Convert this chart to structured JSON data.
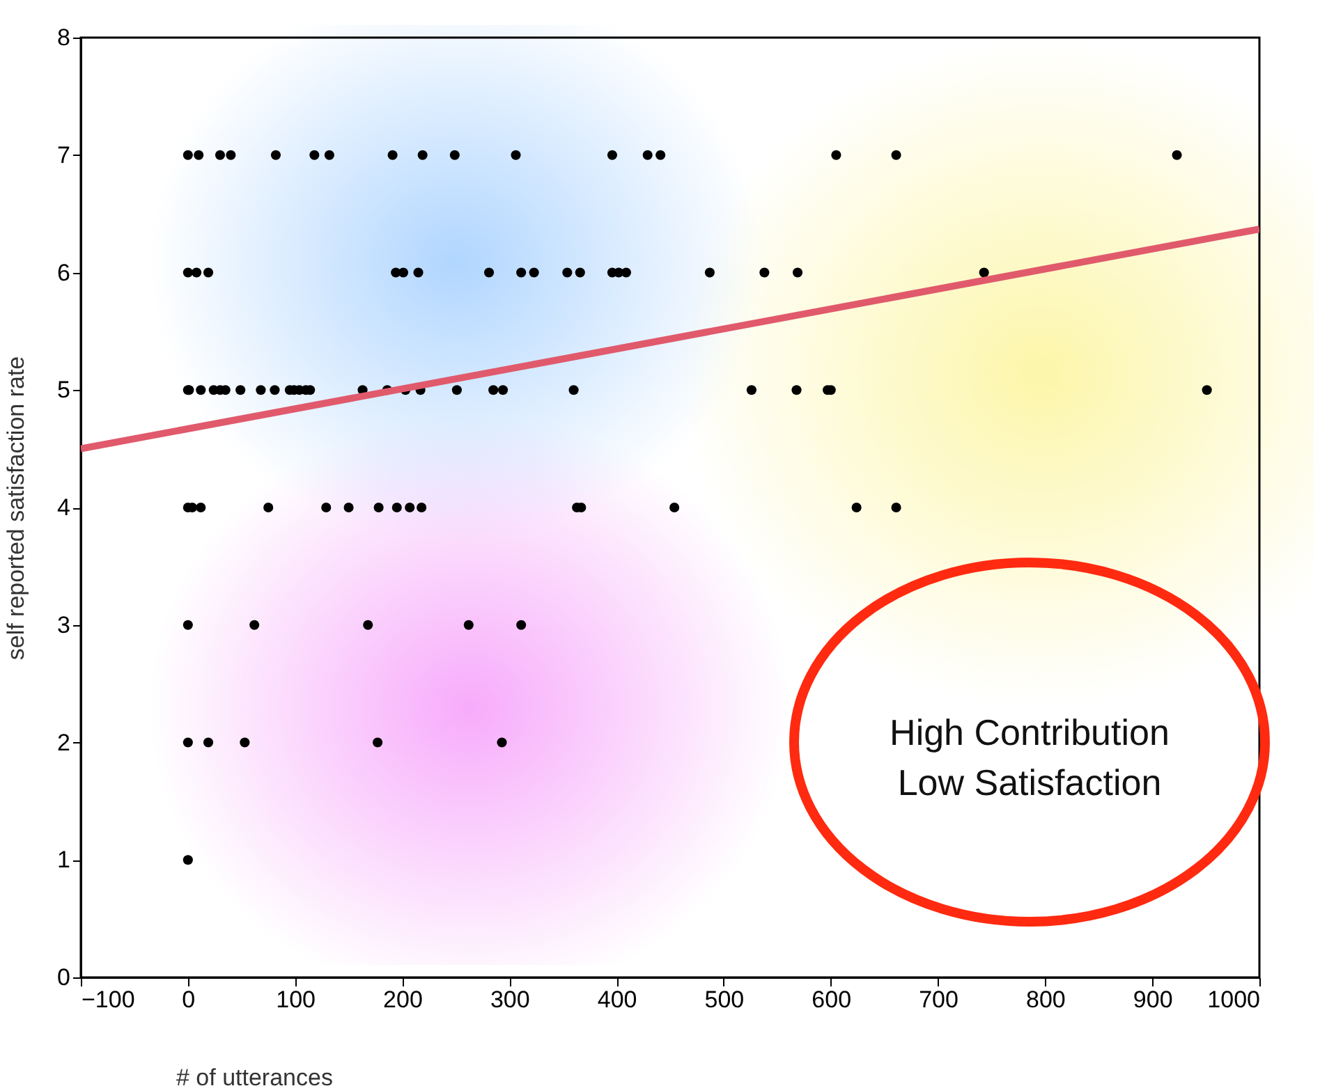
{
  "chart_data": {
    "type": "scatter",
    "xlabel": "# of utterances",
    "ylabel": "self reported satisfaction rate",
    "xlim": [
      -100,
      1000
    ],
    "xticks": [
      -100,
      0,
      100,
      200,
      300,
      400,
      500,
      600,
      700,
      800,
      900,
      1000
    ],
    "ylim": [
      0,
      8
    ],
    "yticks": [
      0,
      1,
      2,
      3,
      4,
      5,
      6,
      7,
      8
    ],
    "grid": false,
    "annotations": [
      "High Contribution\nLow Satisfaction"
    ],
    "series": [
      {
        "marker": "circle",
        "color": "#000000",
        "x": [
          0,
          10,
          30,
          40,
          82,
          118,
          132,
          191,
          219,
          249,
          306,
          396,
          429,
          441,
          605,
          661,
          923,
          0,
          8,
          19,
          194,
          201,
          215,
          281,
          311,
          323,
          354,
          366,
          396,
          402,
          409,
          487,
          538,
          569,
          743,
          0,
          1,
          12,
          24,
          30,
          35,
          49,
          68,
          81,
          95,
          99,
          104,
          110,
          114,
          163,
          186,
          203,
          217,
          251,
          285,
          294,
          360,
          526,
          568,
          597,
          600,
          951,
          0,
          4,
          12,
          75,
          129,
          150,
          178,
          195,
          207,
          218,
          363,
          367,
          454,
          624,
          661,
          0,
          62,
          168,
          262,
          311,
          0,
          19,
          53,
          177,
          293,
          0
        ],
        "values": [
          7,
          7,
          7,
          7,
          7,
          7,
          7,
          7,
          7,
          7,
          7,
          7,
          7,
          7,
          7,
          7,
          7,
          6,
          6,
          6,
          6,
          6,
          6,
          6,
          6,
          6,
          6,
          6,
          6,
          6,
          6,
          6,
          6,
          6,
          6,
          5,
          5,
          5,
          5,
          5,
          5,
          5,
          5,
          5,
          5,
          5,
          5,
          5,
          5,
          5,
          5,
          5,
          5,
          5,
          5,
          5,
          5,
          5,
          5,
          5,
          5,
          5,
          4,
          4,
          4,
          4,
          4,
          4,
          4,
          4,
          4,
          4,
          4,
          4,
          4,
          4,
          4,
          3,
          3,
          3,
          3,
          3,
          2,
          2,
          2,
          2,
          2,
          1
        ]
      },
      {
        "type": "line",
        "color": "#e05a6c",
        "x": [
          -100,
          1000
        ],
        "values": [
          4.5,
          6.37
        ]
      }
    ]
  }
}
